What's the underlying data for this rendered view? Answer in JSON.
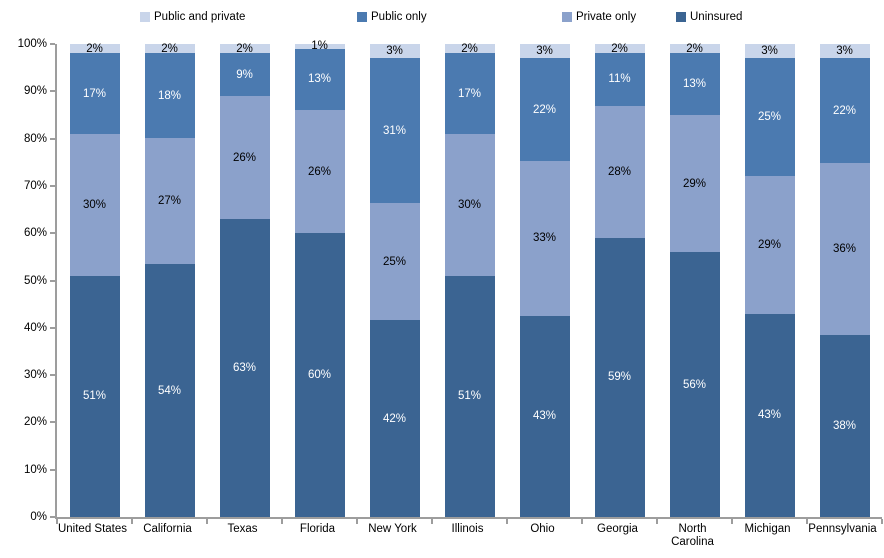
{
  "chart_data": {
    "type": "bar",
    "stacked": true,
    "title": "",
    "xlabel": "",
    "ylabel": "",
    "ylim": [
      0,
      100
    ],
    "ytick_step": 10,
    "ytick_labels": [
      "0%",
      "10%",
      "20%",
      "30%",
      "40%",
      "50%",
      "60%",
      "70%",
      "80%",
      "90%",
      "100%"
    ],
    "grid": false,
    "legend_position": "top",
    "categories": [
      "United States",
      "California",
      "Texas",
      "Florida",
      "New York",
      "Illinois",
      "Ohio",
      "Georgia",
      "North Carolina",
      "Michigan",
      "Pennsylvania"
    ],
    "series": [
      {
        "name": "Uninsured",
        "color": "#3b6492",
        "label_color": "#ffffff",
        "values": [
          51,
          54,
          63,
          60,
          42,
          51,
          43,
          59,
          56,
          43,
          38
        ]
      },
      {
        "name": "Private only",
        "color": "#8ba1cb",
        "label_color": "#000000",
        "values": [
          30,
          27,
          26,
          26,
          25,
          30,
          33,
          28,
          29,
          29,
          36
        ]
      },
      {
        "name": "Public only",
        "color": "#4b7ab0",
        "label_color": "#ffffff",
        "values": [
          17,
          18,
          9,
          13,
          31,
          17,
          22,
          11,
          13,
          25,
          22
        ]
      },
      {
        "name": "Public and private",
        "color": "#c9d5ea",
        "label_color": "#000000",
        "values": [
          2,
          2,
          2,
          1,
          3,
          2,
          3,
          2,
          2,
          3,
          3
        ]
      }
    ],
    "legend_items": [
      {
        "label": "Public and private"
      },
      {
        "label": "Public only"
      },
      {
        "label": "Private only"
      },
      {
        "label": "Uninsured"
      }
    ],
    "value_suffix": "%",
    "axis_color": "#9d9d9d"
  }
}
